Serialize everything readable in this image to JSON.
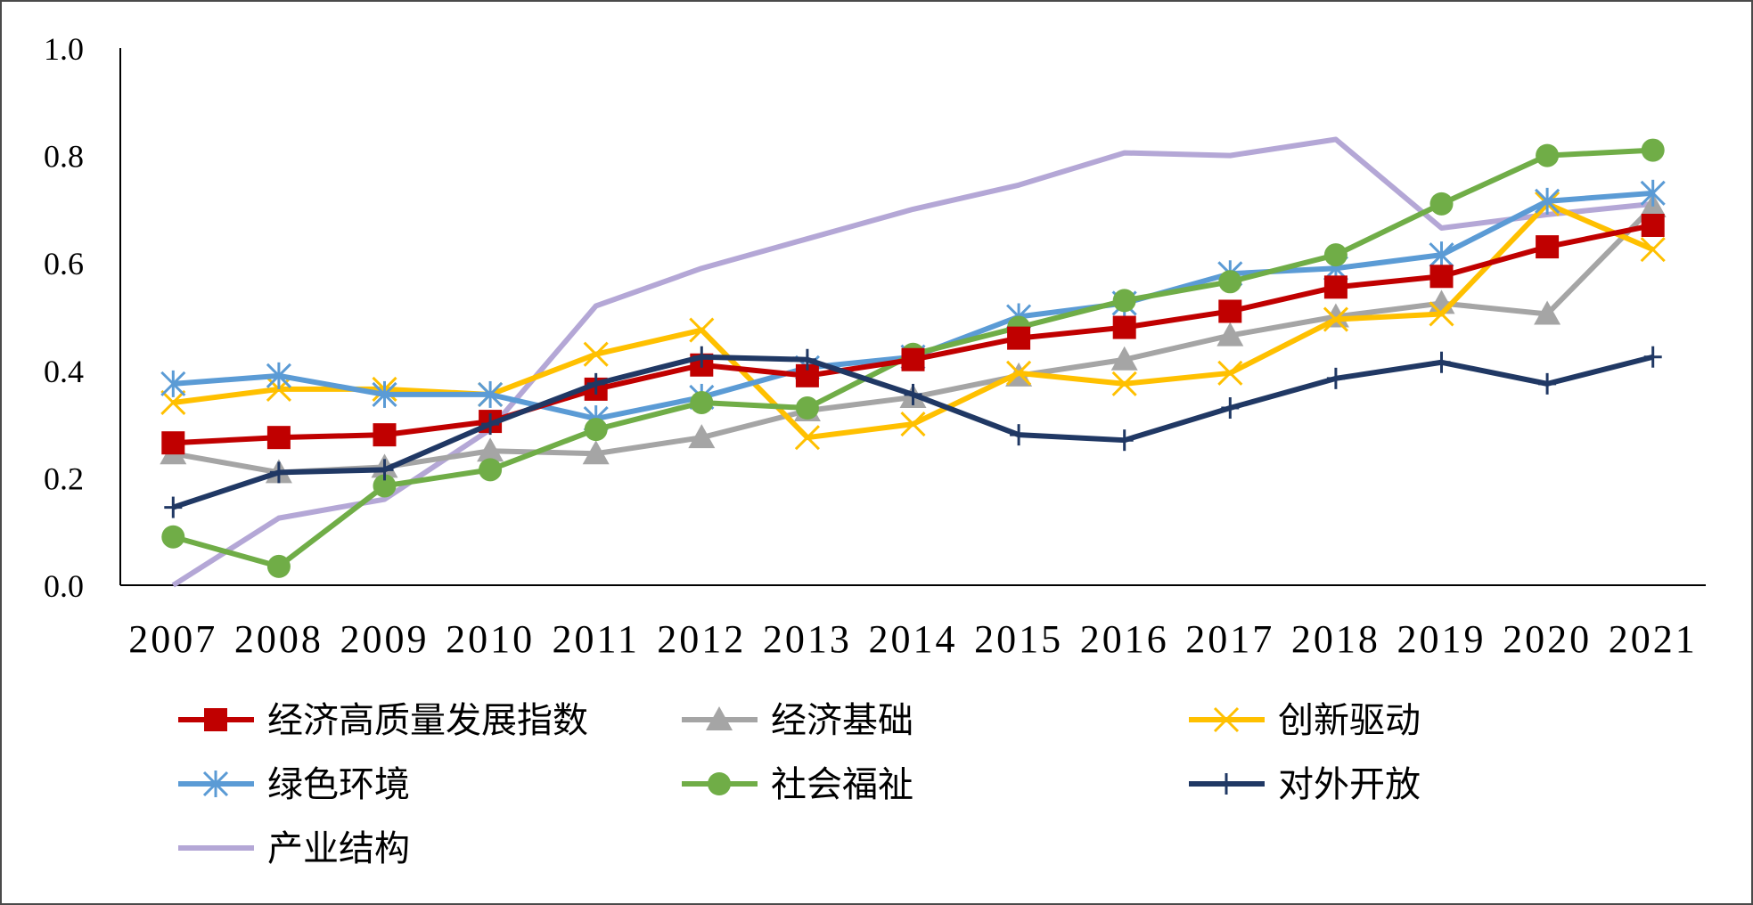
{
  "chart_data": {
    "type": "line",
    "title": "",
    "xlabel": "",
    "ylabel": "",
    "ylim": [
      0,
      1.0
    ],
    "y_ticks": [
      "0.0",
      "0.2",
      "0.4",
      "0.6",
      "0.8",
      "1.0"
    ],
    "grid": false,
    "legend_position": "bottom",
    "categories": [
      "2007",
      "2008",
      "2009",
      "2010",
      "2011",
      "2012",
      "2013",
      "2014",
      "2015",
      "2016",
      "2017",
      "2018",
      "2019",
      "2020",
      "2021"
    ],
    "series": [
      {
        "name": "经济高质量发展指数",
        "color": "#c00000",
        "marker": "square",
        "values": [
          0.265,
          0.275,
          0.28,
          0.305,
          0.365,
          0.41,
          0.39,
          0.42,
          0.46,
          0.48,
          0.51,
          0.555,
          0.575,
          0.63,
          0.67
        ]
      },
      {
        "name": "经济基础",
        "color": "#a5a5a5",
        "marker": "triangle",
        "values": [
          0.245,
          0.21,
          0.22,
          0.25,
          0.245,
          0.275,
          0.325,
          0.35,
          0.39,
          0.42,
          0.465,
          0.5,
          0.525,
          0.505,
          0.705
        ]
      },
      {
        "name": "创新驱动",
        "color": "#ffc000",
        "marker": "x",
        "values": [
          0.34,
          0.365,
          0.365,
          0.355,
          0.43,
          0.475,
          0.275,
          0.3,
          0.395,
          0.375,
          0.395,
          0.495,
          0.505,
          0.71,
          0.625
        ]
      },
      {
        "name": "绿色环境",
        "color": "#5b9bd5",
        "marker": "asterisk",
        "values": [
          0.375,
          0.39,
          0.355,
          0.355,
          0.31,
          0.35,
          0.405,
          0.425,
          0.5,
          0.525,
          0.58,
          0.59,
          0.615,
          0.715,
          0.73
        ]
      },
      {
        "name": "社会福祉",
        "color": "#70ad47",
        "marker": "circle",
        "values": [
          0.09,
          0.035,
          0.185,
          0.215,
          0.29,
          0.34,
          0.33,
          0.43,
          0.48,
          0.53,
          0.565,
          0.615,
          0.71,
          0.8,
          0.81
        ]
      },
      {
        "name": "对外开放",
        "color": "#203864",
        "marker": "plus",
        "values": [
          0.145,
          0.21,
          0.215,
          0.3,
          0.375,
          0.425,
          0.42,
          0.355,
          0.28,
          0.27,
          0.33,
          0.385,
          0.415,
          0.375,
          0.425
        ]
      },
      {
        "name": "产业结构",
        "color": "#b4a7d6",
        "marker": "none",
        "values": [
          0.0,
          0.125,
          0.16,
          0.29,
          0.52,
          0.59,
          0.645,
          0.7,
          0.745,
          0.805,
          0.8,
          0.83,
          0.665,
          0.69,
          0.71
        ]
      }
    ]
  }
}
